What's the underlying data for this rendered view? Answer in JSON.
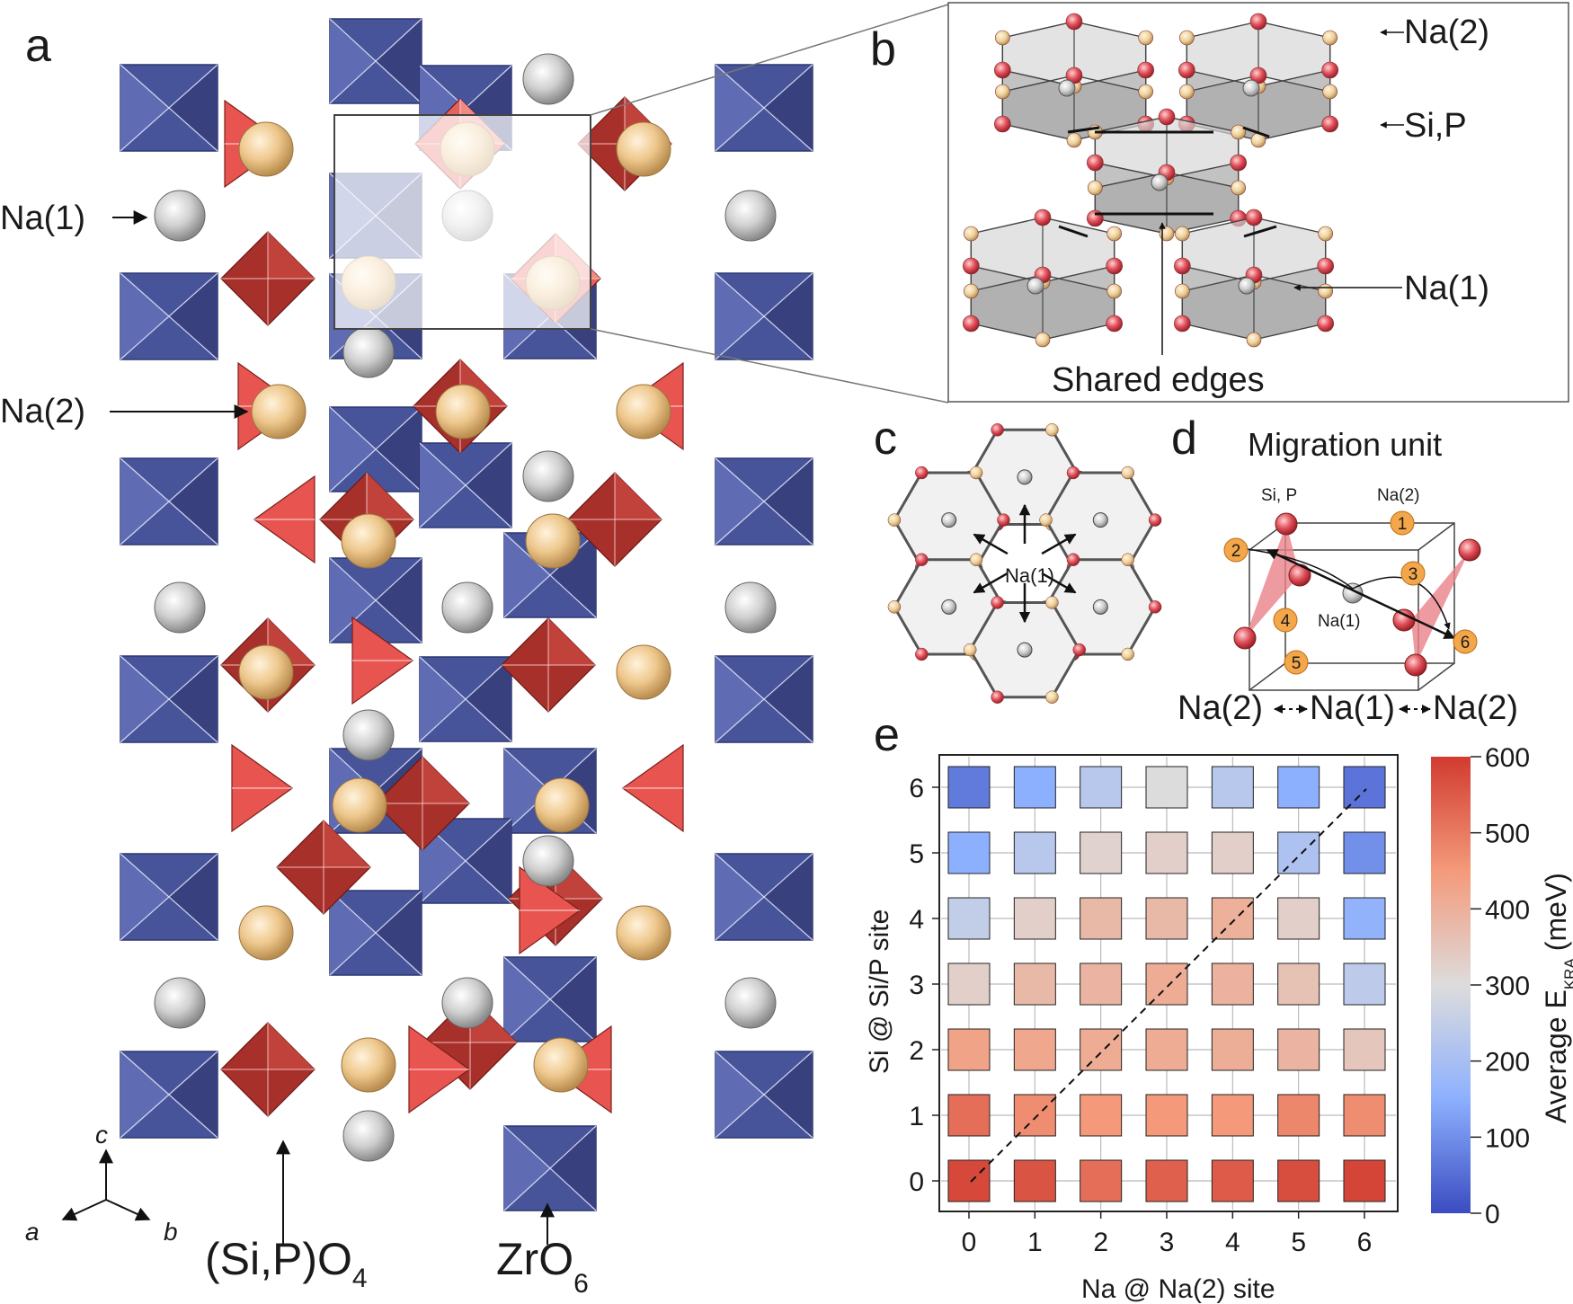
{
  "panels": {
    "a": "a",
    "b": "b",
    "c": "c",
    "d": "d",
    "e": "e"
  },
  "panel_a": {
    "na1_label": "Na(1)",
    "na2_label": "Na(2)",
    "sipo4_label_main": "(Si,P)O",
    "sipo4_label_sub": "4",
    "zro6_label_main": "ZrO",
    "zro6_label_sub": "6",
    "axes": {
      "c": "c",
      "a": "a",
      "b": "b"
    }
  },
  "panel_b": {
    "na2_label": "Na(2)",
    "sip_label": "Si,P",
    "na1_label": "Na(1)",
    "shared_edges_label": "Shared edges"
  },
  "panel_c": {
    "center_label": "Na(1)"
  },
  "panel_d": {
    "title": "Migration unit",
    "sip_label": "Si, P",
    "na2_label": "Na(2)",
    "na1_label": "Na(1)",
    "site_numbers": [
      "1",
      "2",
      "3",
      "4",
      "5",
      "6"
    ],
    "path_left": "Na(2)",
    "path_mid": "Na(1)",
    "path_right": "Na(2)"
  },
  "colors": {
    "zro6_blue": "#47549a",
    "sio4_red": "#a8302b",
    "na1_grey": "#d0d0d0",
    "na2_gold": "#eec78c",
    "orange_site": "#f4a74a"
  },
  "chart_data": {
    "type": "heatmap",
    "xlabel": "Na @ Na(2) site",
    "ylabel": "Si @ Si/P site",
    "x": [
      0,
      1,
      2,
      3,
      4,
      5,
      6
    ],
    "y": [
      0,
      1,
      2,
      3,
      4,
      5,
      6
    ],
    "colorbar": {
      "label_main": "Average E",
      "label_sub": "KRA",
      "label_unit": "(meV)",
      "min": 0,
      "max": 600,
      "ticks": [
        0,
        100,
        200,
        300,
        400,
        500,
        600
      ],
      "colormap": "coolwarm"
    },
    "diagonal_dashed_line": true,
    "values": [
      [
        580,
        560,
        520,
        540,
        550,
        570,
        585
      ],
      [
        520,
        470,
        450,
        450,
        450,
        480,
        470
      ],
      [
        430,
        420,
        410,
        410,
        405,
        390,
        350
      ],
      [
        330,
        380,
        390,
        410,
        395,
        360,
        240
      ],
      [
        250,
        330,
        380,
        380,
        400,
        330,
        160
      ],
      [
        150,
        230,
        320,
        330,
        330,
        210,
        100
      ],
      [
        70,
        150,
        230,
        300,
        230,
        150,
        60
      ]
    ]
  }
}
